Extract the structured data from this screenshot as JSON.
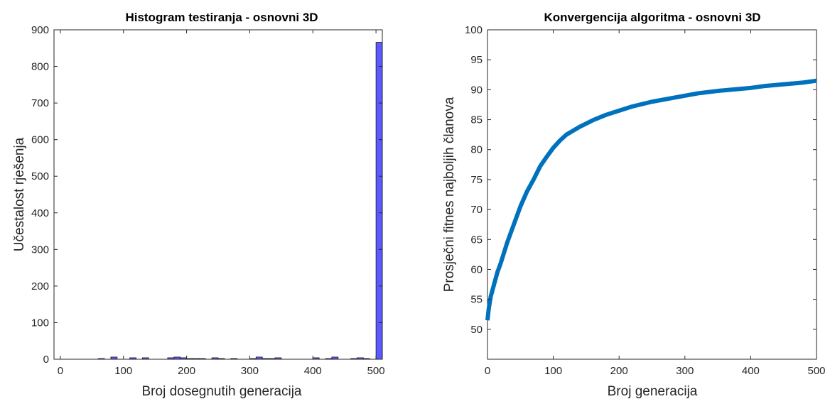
{
  "chart_data": [
    {
      "type": "bar",
      "title": "Histogram testiranja - osnovni 3D",
      "xlabel": "Broj dosegnutih generacija",
      "ylabel": "Učestalost rješenja",
      "xlim": [
        -10,
        510
      ],
      "ylim": [
        0,
        900
      ],
      "xticks": [
        "0",
        "100",
        "200",
        "300",
        "400",
        "500"
      ],
      "yticks": [
        "0",
        "100",
        "200",
        "300",
        "400",
        "500",
        "600",
        "700",
        "800",
        "900"
      ],
      "bin_width": 10,
      "bins": [
        {
          "x": 65,
          "value": 2
        },
        {
          "x": 85,
          "value": 6
        },
        {
          "x": 115,
          "value": 4
        },
        {
          "x": 135,
          "value": 4
        },
        {
          "x": 175,
          "value": 4
        },
        {
          "x": 185,
          "value": 6
        },
        {
          "x": 195,
          "value": 4
        },
        {
          "x": 205,
          "value": 2
        },
        {
          "x": 215,
          "value": 2
        },
        {
          "x": 225,
          "value": 2
        },
        {
          "x": 245,
          "value": 4
        },
        {
          "x": 255,
          "value": 2
        },
        {
          "x": 275,
          "value": 2
        },
        {
          "x": 305,
          "value": 2
        },
        {
          "x": 315,
          "value": 6
        },
        {
          "x": 325,
          "value": 2
        },
        {
          "x": 335,
          "value": 2
        },
        {
          "x": 345,
          "value": 4
        },
        {
          "x": 405,
          "value": 4
        },
        {
          "x": 425,
          "value": 2
        },
        {
          "x": 435,
          "value": 6
        },
        {
          "x": 465,
          "value": 2
        },
        {
          "x": 475,
          "value": 4
        },
        {
          "x": 485,
          "value": 2
        },
        {
          "x": 505,
          "value": 866
        }
      ],
      "bar_color": "#5a5aff",
      "edge_color": "#1a1a1a"
    },
    {
      "type": "line",
      "title": "Konvergencija algoritma - osnovni 3D",
      "xlabel": "Broj generacija",
      "ylabel": "Prosječni fitnes najboljih članova",
      "xlim": [
        0,
        500
      ],
      "ylim": [
        45,
        100
      ],
      "xticks": [
        "0",
        "100",
        "200",
        "300",
        "400",
        "500"
      ],
      "yticks": [
        "50",
        "55",
        "60",
        "65",
        "70",
        "75",
        "80",
        "85",
        "90",
        "95",
        "100"
      ],
      "x": [
        0,
        2,
        5,
        10,
        15,
        20,
        30,
        40,
        50,
        60,
        70,
        80,
        90,
        100,
        110,
        120,
        140,
        160,
        180,
        200,
        220,
        250,
        280,
        300,
        320,
        350,
        380,
        400,
        420,
        450,
        480,
        500
      ],
      "y": [
        51.5,
        53.5,
        55.5,
        57.5,
        59.5,
        61.0,
        64.5,
        67.5,
        70.5,
        73.0,
        75.0,
        77.2,
        78.8,
        80.3,
        81.5,
        82.5,
        83.8,
        84.9,
        85.8,
        86.5,
        87.2,
        88.0,
        88.6,
        89.0,
        89.4,
        89.8,
        90.1,
        90.3,
        90.6,
        90.9,
        91.2,
        91.5
      ],
      "line_color": "#0072bd"
    }
  ]
}
